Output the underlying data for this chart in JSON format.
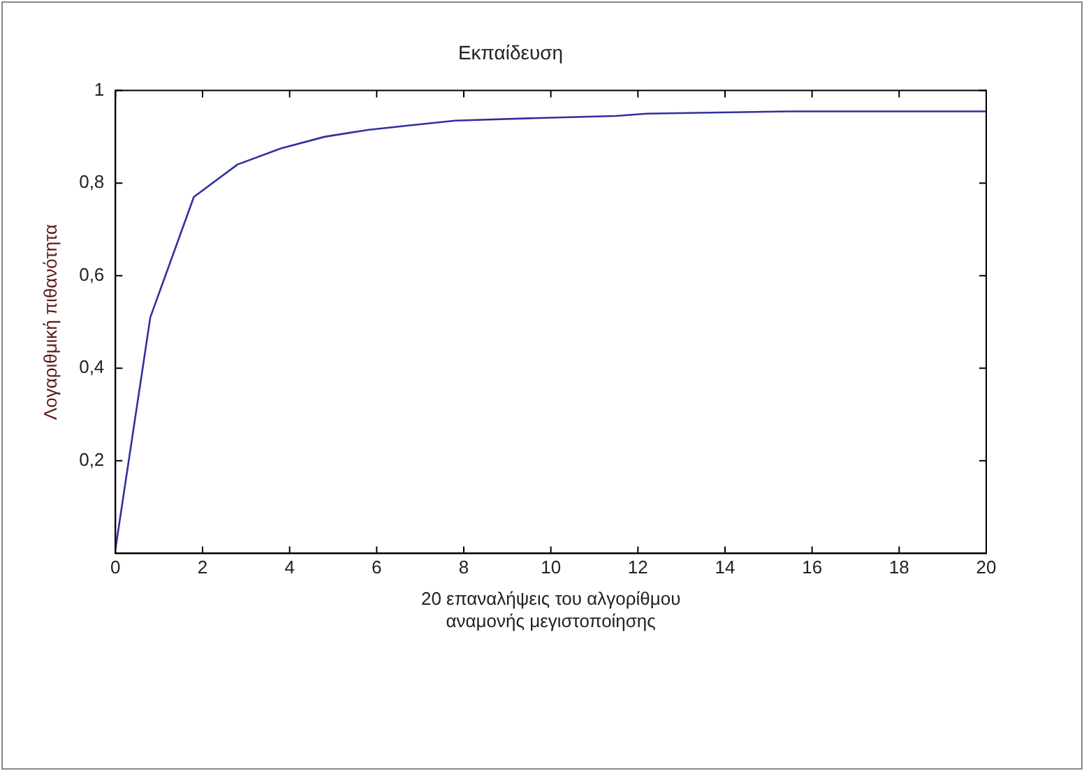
{
  "chart_data": {
    "type": "line",
    "title": "Εκπαίδευση",
    "xlabel": "20 επαναλήψεις του αλγορίθμου\nαναμονής μεγιστοποίησης",
    "ylabel": "Λογαριθμική πιθανότητα",
    "series": [
      {
        "color": "#3030a0",
        "x": [
          0,
          0.8,
          1.8,
          2.8,
          3.8,
          4.8,
          5.8,
          6.8,
          7.8,
          9.5,
          11.5,
          12.2,
          15.5,
          20
        ],
        "values": [
          0.01,
          0.51,
          0.77,
          0.84,
          0.875,
          0.9,
          0.915,
          0.925,
          0.935,
          0.94,
          0.945,
          0.95,
          0.955,
          0.955
        ]
      }
    ],
    "xlim": [
      0,
      20
    ],
    "xticks": [
      0,
      2,
      4,
      6,
      8,
      10,
      12,
      14,
      16,
      18,
      20
    ],
    "ylim": [
      0,
      1
    ],
    "yticks": [
      {
        "value": 0.2,
        "label": "0,2"
      },
      {
        "value": 0.4,
        "label": "0,4"
      },
      {
        "value": 0.6,
        "label": "0,6"
      },
      {
        "value": 0.8,
        "label": "0,8"
      },
      {
        "value": 1,
        "label": "1"
      }
    ],
    "grid": false,
    "legend": false,
    "marker": "none",
    "line_style": "solid"
  }
}
